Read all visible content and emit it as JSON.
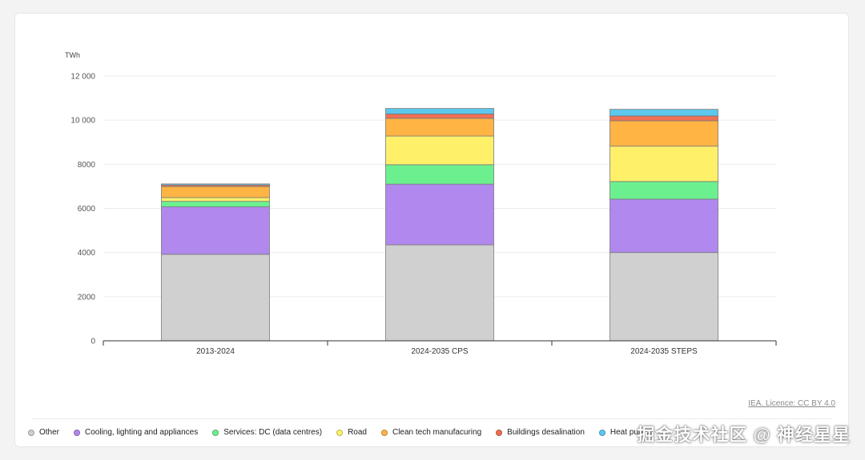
{
  "chart_data": {
    "type": "bar",
    "stacked": true,
    "unit_label": "TWh",
    "categories": [
      "2013-2024",
      "2024-2035 CPS",
      "2024-2035 STEPS"
    ],
    "ylim": [
      0,
      12000
    ],
    "yticks": [
      0,
      2000,
      4000,
      6000,
      8000,
      10000,
      12000
    ],
    "ytick_labels": [
      "0",
      "2000",
      "4000",
      "6000",
      "8000",
      "10 000",
      "12 000"
    ],
    "grid": true,
    "legend_position": "bottom",
    "series": [
      {
        "name": "Other",
        "color": "#d0d0d0",
        "values": [
          3920,
          4350,
          4000
        ]
      },
      {
        "name": "Cooling, lighting and appliances",
        "color": "#b088ee",
        "values": [
          2150,
          2750,
          2420
        ]
      },
      {
        "name": "Services: DC (data centres)",
        "color": "#6cf08f",
        "values": [
          250,
          880,
          800
        ]
      },
      {
        "name": "Road",
        "color": "#fff06a",
        "values": [
          170,
          1300,
          1600
        ]
      },
      {
        "name": "Clean tech manufacuring",
        "color": "#ffb444",
        "values": [
          500,
          800,
          1150
        ]
      },
      {
        "name": "Buildings desalination",
        "color": "#ee7055",
        "values": [
          70,
          200,
          220
        ]
      },
      {
        "name": "Heat pumps",
        "color": "#5cc8ee",
        "values": [
          50,
          250,
          300
        ]
      }
    ]
  },
  "source_text": "IEA. Licence: CC BY 4.0",
  "watermark_text": "掘金技术社区 @ 神经星星"
}
